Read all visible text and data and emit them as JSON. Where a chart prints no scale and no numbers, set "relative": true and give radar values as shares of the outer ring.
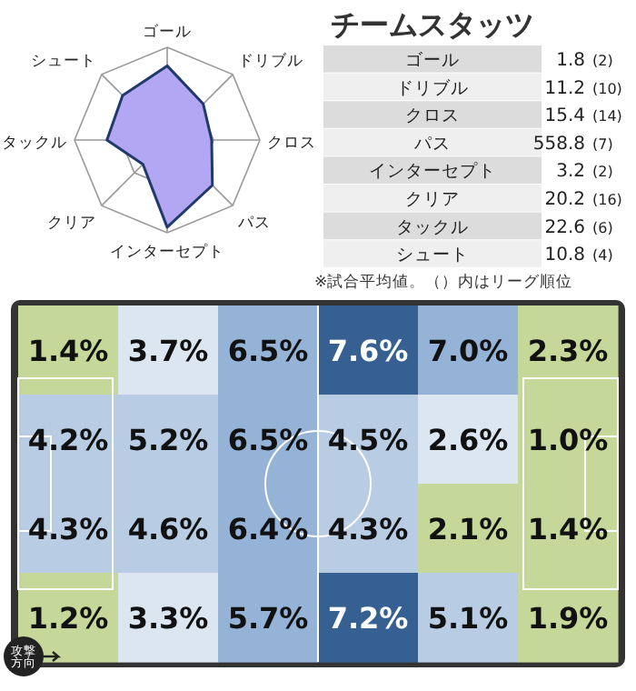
{
  "chart_data": [
    {
      "type": "radar",
      "relative": true,
      "categories": [
        "ゴール",
        "ドリブル",
        "クロス",
        "パス",
        "インターセプト",
        "クリア",
        "タックル",
        "シュート"
      ],
      "series": [
        {
          "color": "#b3a6f2",
          "values": [
            0.8,
            0.55,
            0.48,
            0.69,
            0.94,
            0.37,
            0.65,
            0.68
          ]
        }
      ]
    },
    {
      "type": "other",
      "title": "チームスタッツ",
      "categories": [
        "ゴール",
        "ドリブル",
        "クロス",
        "パス",
        "インターセプト",
        "クリア",
        "タックル",
        "シュート"
      ],
      "data_labels": true,
      "series": [
        {
          "values": [
            1.8,
            11.2,
            15.4,
            558.8,
            3.2,
            20.2,
            22.6,
            10.8
          ]
        },
        {
          "values": [
            2,
            10,
            14,
            7,
            2,
            16,
            6,
            4
          ],
          "value_labels": [
            "(2)",
            "(10)",
            "(14)",
            "(7)",
            "(2)",
            "(16)",
            "(6)",
            "(4)"
          ]
        }
      ],
      "annotations": [
        "※試合平均値。（）内はリーグ順位"
      ]
    },
    {
      "type": "heatmap",
      "categories": [
        null,
        null,
        null,
        null,
        null,
        null
      ],
      "y_categories": [
        null,
        null,
        null,
        null
      ],
      "cells": [
        [
          1.4,
          3.7,
          6.5,
          7.6,
          7.0,
          2.3
        ],
        [
          4.2,
          5.2,
          6.5,
          4.5,
          2.6,
          1.0
        ],
        [
          4.3,
          4.6,
          6.4,
          4.3,
          2.1,
          1.4
        ],
        [
          1.2,
          3.3,
          5.7,
          7.2,
          5.1,
          1.9
        ]
      ],
      "cell_labels": [
        [
          "1.4%",
          "3.7%",
          "6.5%",
          "7.6%",
          "7.0%",
          "2.3%"
        ],
        [
          "4.2%",
          "5.2%",
          "6.5%",
          "4.5%",
          "2.6%",
          "1.0%"
        ],
        [
          "4.3%",
          "4.6%",
          "6.4%",
          "4.3%",
          "2.1%",
          "1.4%"
        ],
        [
          "1.2%",
          "3.3%",
          "5.7%",
          "7.2%",
          "5.1%",
          "1.9%"
        ]
      ],
      "annotations": [
        "攻撃方向"
      ]
    }
  ]
}
